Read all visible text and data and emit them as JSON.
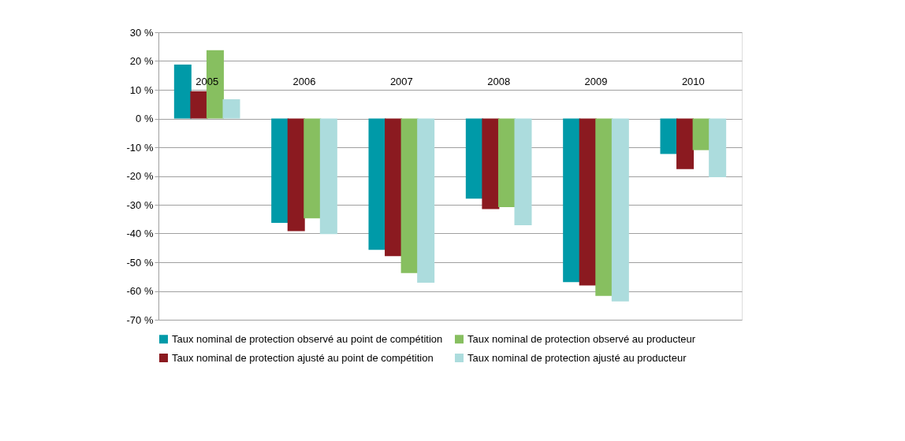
{
  "chart_data": {
    "type": "bar",
    "categories": [
      "2005",
      "2006",
      "2007",
      "2008",
      "2009",
      "2010"
    ],
    "series": [
      {
        "name": "Taux nominal de protection observé au point de compétition",
        "color": "#009aa8",
        "values": [
          18.8,
          -36.3,
          -45.7,
          -27.9,
          -56.9,
          -12.3
        ]
      },
      {
        "name": "Taux nominal de protection ajusté au point de compétition",
        "color": "#8b1a20",
        "values": [
          9.5,
          -39.2,
          -47.9,
          -31.5,
          -58.1,
          -17.6
        ]
      },
      {
        "name": "Taux nominal de protection observé au producteur",
        "color": "#87bf60",
        "values": [
          23.8,
          -34.7,
          -53.8,
          -30.8,
          -61.7,
          -11.0
        ]
      },
      {
        "name": "Taux nominal de protection ajusté  au producteur",
        "color": "#acdcdd",
        "values": [
          6.7,
          -40.2,
          -57.1,
          -37.1,
          -63.6,
          -20.4
        ]
      }
    ],
    "ylim": [
      -70,
      30
    ],
    "yticks": [
      {
        "value": -70,
        "label": "-70 %"
      },
      {
        "value": -60,
        "label": "-60 %"
      },
      {
        "value": -50,
        "label": "-50 %"
      },
      {
        "value": -40,
        "label": "-40 %"
      },
      {
        "value": -30,
        "label": "-30 %"
      },
      {
        "value": -20,
        "label": "-20 %"
      },
      {
        "value": -10,
        "label": "-10 %"
      },
      {
        "value": 0,
        "label": "0 %"
      },
      {
        "value": 10,
        "label": "10 %"
      },
      {
        "value": 20,
        "label": "20 %"
      },
      {
        "value": 30,
        "label": "30 %"
      }
    ],
    "grid": "y",
    "legend": "bottom"
  }
}
